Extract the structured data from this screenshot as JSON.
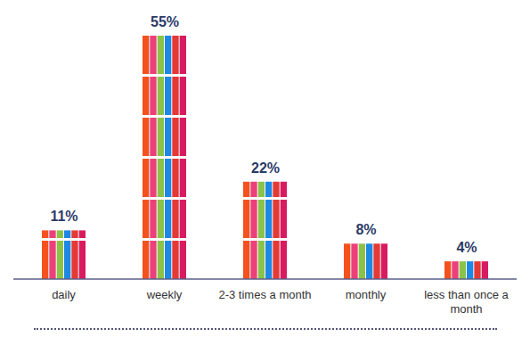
{
  "chart_data": {
    "type": "bar",
    "categories": [
      "daily",
      "weekly",
      "2-3 times a month",
      "monthly",
      "less than once a month"
    ],
    "values": [
      11,
      55,
      22,
      8,
      4
    ],
    "value_labels": [
      "11%",
      "55%",
      "22%",
      "8%",
      "4%"
    ],
    "data_labels": true,
    "tick_labels": "x"
  }
}
